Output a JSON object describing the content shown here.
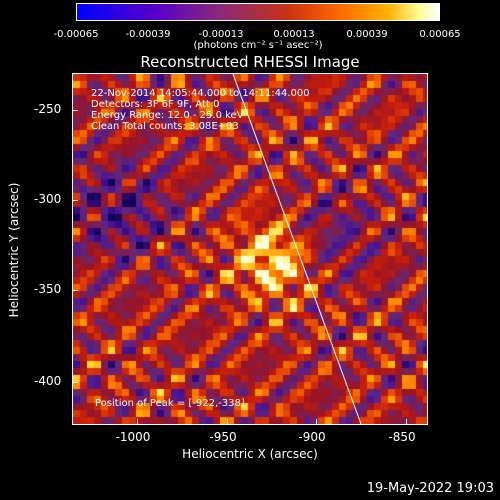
{
  "colorbar": {
    "ticks": [
      "-0.00065",
      "-0.00039",
      "-0.00013",
      "0.00013",
      "0.00039",
      "0.00065"
    ],
    "units": "(photons cm⁻² s⁻¹ asec⁻²)"
  },
  "title": "Reconstructed RHESSI Image",
  "info": {
    "line1": "22-Nov-2014 14:05:44.000 to 14:11:44.000",
    "line2": "Detectors: 3F 6F 9F, Att 0",
    "line3": "Energy Range: 12.0 - 25.0 keV",
    "line4": "Clean     Total counts: 3.08E+03",
    "peak": "Position of Peak = [-922,-338]"
  },
  "axes": {
    "xlabel": "Heliocentric X (arcsec)",
    "ylabel": "Heliocentric Y (arcsec)",
    "xticks": [
      "-1000",
      "-950",
      "-900",
      "-850"
    ],
    "yticks": [
      "-250",
      "-300",
      "-350",
      "-400"
    ]
  },
  "footer": {
    "timestamp": "19-May-2022 19:03"
  },
  "colors": {
    "background": "#000000",
    "foreground": "#ffffff"
  }
}
